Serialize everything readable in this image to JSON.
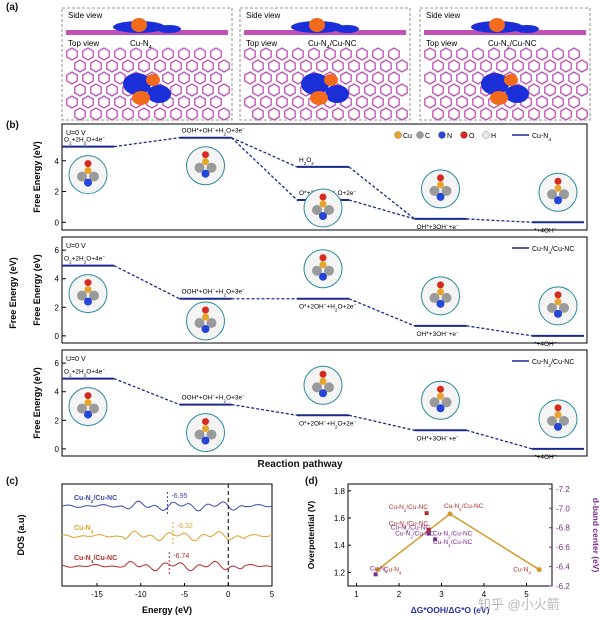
{
  "panel_a": {
    "letter": "(a)",
    "frames": [
      {
        "side": "Side view",
        "top": "Top view",
        "label": "Cu-N4"
      },
      {
        "side": "Side view",
        "top": "Top view",
        "label": "Cu-N4/Cu-NC"
      },
      {
        "side": "Side view",
        "top": "Top view",
        "label": "Cu-N2/Cu-NC"
      }
    ],
    "colors": {
      "lattice": "#c052b6",
      "lobe_blue": "#1a2fd8",
      "lobe_orange": "#f26a1b"
    }
  },
  "panel_b": {
    "letter": "(b)",
    "xlabel": "Reaction pathway",
    "ylabel": "Free Energy (eV)",
    "legend_atoms": [
      {
        "sym": "Cu",
        "color": "#e6a42b"
      },
      {
        "sym": "C",
        "color": "#9a9a9a"
      },
      {
        "sym": "N",
        "color": "#2544d8"
      },
      {
        "sym": "O",
        "color": "#d62a1e"
      },
      {
        "sym": "H",
        "color": "#e8e8e8"
      }
    ],
    "line_color": "#1a2a8c",
    "subplots": [
      {
        "condition": "U=0 V",
        "legend": "Cu-N4",
        "ylim": [
          -0.5,
          6
        ],
        "yticks": [
          0,
          2,
          4
        ],
        "states": [
          {
            "x": 0.0,
            "y": 4.92,
            "label": "O₂+2H₂O+4e⁻"
          },
          {
            "x": 1.5,
            "y": 5.5,
            "label": "OOH*+OH⁻+H₂O+3e⁻"
          },
          {
            "x": 3.0,
            "y": 3.6,
            "label": "H₂O₂"
          },
          {
            "x": 3.0,
            "y": 1.45,
            "label": "O*+2OH⁻+H₂O+2e⁻"
          },
          {
            "x": 4.5,
            "y": 0.22,
            "label": "OH*+3OH⁻+e⁻"
          },
          {
            "x": 6.0,
            "y": 0.0,
            "label": "*+4OH⁻"
          }
        ],
        "links": [
          [
            0,
            1
          ],
          [
            1,
            2
          ],
          [
            1,
            3
          ],
          [
            2,
            4
          ],
          [
            3,
            4
          ],
          [
            4,
            5
          ]
        ]
      },
      {
        "condition": "U=0 V",
        "legend": "Cu-N4/Cu-NC",
        "ylim": [
          -0.5,
          6.5
        ],
        "yticks": [
          0,
          2,
          4,
          6
        ],
        "states": [
          {
            "x": 0.0,
            "y": 4.92,
            "label": "O₂+2H₂O+4e⁻"
          },
          {
            "x": 1.5,
            "y": 2.6,
            "label": "OOH*+OH⁻+H₂O+3e⁻"
          },
          {
            "x": 3.0,
            "y": 2.6,
            "label": "O*+2OH⁻+H₂O+2e⁻"
          },
          {
            "x": 4.5,
            "y": 0.7,
            "label": "OH*+3OH⁻+e⁻"
          },
          {
            "x": 6.0,
            "y": 0.0,
            "label": "*+4OH⁻"
          }
        ],
        "links": [
          [
            0,
            1
          ],
          [
            1,
            2
          ],
          [
            2,
            3
          ],
          [
            3,
            4
          ]
        ]
      },
      {
        "condition": "U=0 V",
        "legend": "Cu-N2/Cu-NC",
        "ylim": [
          -0.5,
          6.5
        ],
        "yticks": [
          0,
          2,
          4,
          6
        ],
        "states": [
          {
            "x": 0.0,
            "y": 4.92,
            "label": "O₂+2H₂O+4e⁻"
          },
          {
            "x": 1.5,
            "y": 3.1,
            "label": "OOH*+OH⁻+H₂O+3e⁻"
          },
          {
            "x": 3.0,
            "y": 2.35,
            "label": "O*+2OH⁻+H₂O+2e⁻"
          },
          {
            "x": 4.5,
            "y": 1.3,
            "label": "OH*+3OH⁻+e⁻"
          },
          {
            "x": 6.0,
            "y": 0.0,
            "label": "*+4OH⁻"
          }
        ],
        "links": [
          [
            0,
            1
          ],
          [
            1,
            2
          ],
          [
            2,
            3
          ],
          [
            3,
            4
          ]
        ]
      }
    ]
  },
  "panel_c": {
    "letter": "(c)",
    "xlabel": "Energy (eV)",
    "ylabel": "DOS (a.u)",
    "xlim": [
      -19,
      5
    ],
    "xticks": [
      -15,
      -10,
      -5,
      0,
      5
    ],
    "series": [
      {
        "name": "Cu-N2/Cu-NC",
        "center": "-6.95",
        "center_value": -6.95,
        "color": "#3b4bab"
      },
      {
        "name": "Cu-N4",
        "center": "-6.32",
        "center_value": -6.32,
        "color": "#d9a32b"
      },
      {
        "name": "Cu-N4/Cu-NC",
        "center": "-6.74",
        "center_value": -6.74,
        "color": "#b32c2c"
      }
    ]
  },
  "panel_d": {
    "letter": "(d)",
    "xlabel": "ΔG*OOH/ΔG*O (eV)",
    "ylabel_left": "Overpotential (V)",
    "ylabel_right": "d-band center (eV)",
    "xlim": [
      0.8,
      5.6
    ],
    "xticks": [
      1,
      2,
      3,
      4,
      5
    ],
    "ylim_left": [
      1.1,
      1.85
    ],
    "yticks_left": [
      1.2,
      1.4,
      1.6,
      1.8
    ],
    "ylim_right": [
      -6.2,
      -7.25
    ],
    "yticks_right": [
      "-6.2",
      "-6.4",
      "-6.6",
      "-6.8",
      "-7.0",
      "-7.2"
    ],
    "volcano_color": "#d59a2a",
    "right_axis_color": "#7b2a8c",
    "volcano": [
      {
        "x": 1.5,
        "y": 1.22,
        "label": "Cu-N4"
      },
      {
        "x": 3.2,
        "y": 1.63,
        "label": "Cu-N2/Cu-NC"
      },
      {
        "x": 5.3,
        "y": 1.22,
        "label": "Cu-N4"
      }
    ],
    "dband": [
      {
        "x": 1.45,
        "y": -6.32,
        "label": "Cu-N4",
        "color": "#7b2a8c"
      },
      {
        "x": 2.65,
        "y": -6.95,
        "label": "Cu-N2/Cu-NC",
        "color": "#b32c2c"
      },
      {
        "x": 2.7,
        "y": -6.78,
        "label": "Cu-N4/Cu-NC",
        "color": "#b32c2c"
      },
      {
        "x": 2.7,
        "y": -6.74,
        "label": "Cu-N4/Cu-NC",
        "color": "#7b2a8c"
      },
      {
        "x": 2.85,
        "y": -6.68,
        "label": "Cu-N2/Cu-NC",
        "color": "#7b2a8c"
      }
    ],
    "extra_labels": [
      "Cu-N2/Cu-NC",
      "Cu-N4/Cu-NC"
    ]
  },
  "watermark": "知乎 @小火箭"
}
